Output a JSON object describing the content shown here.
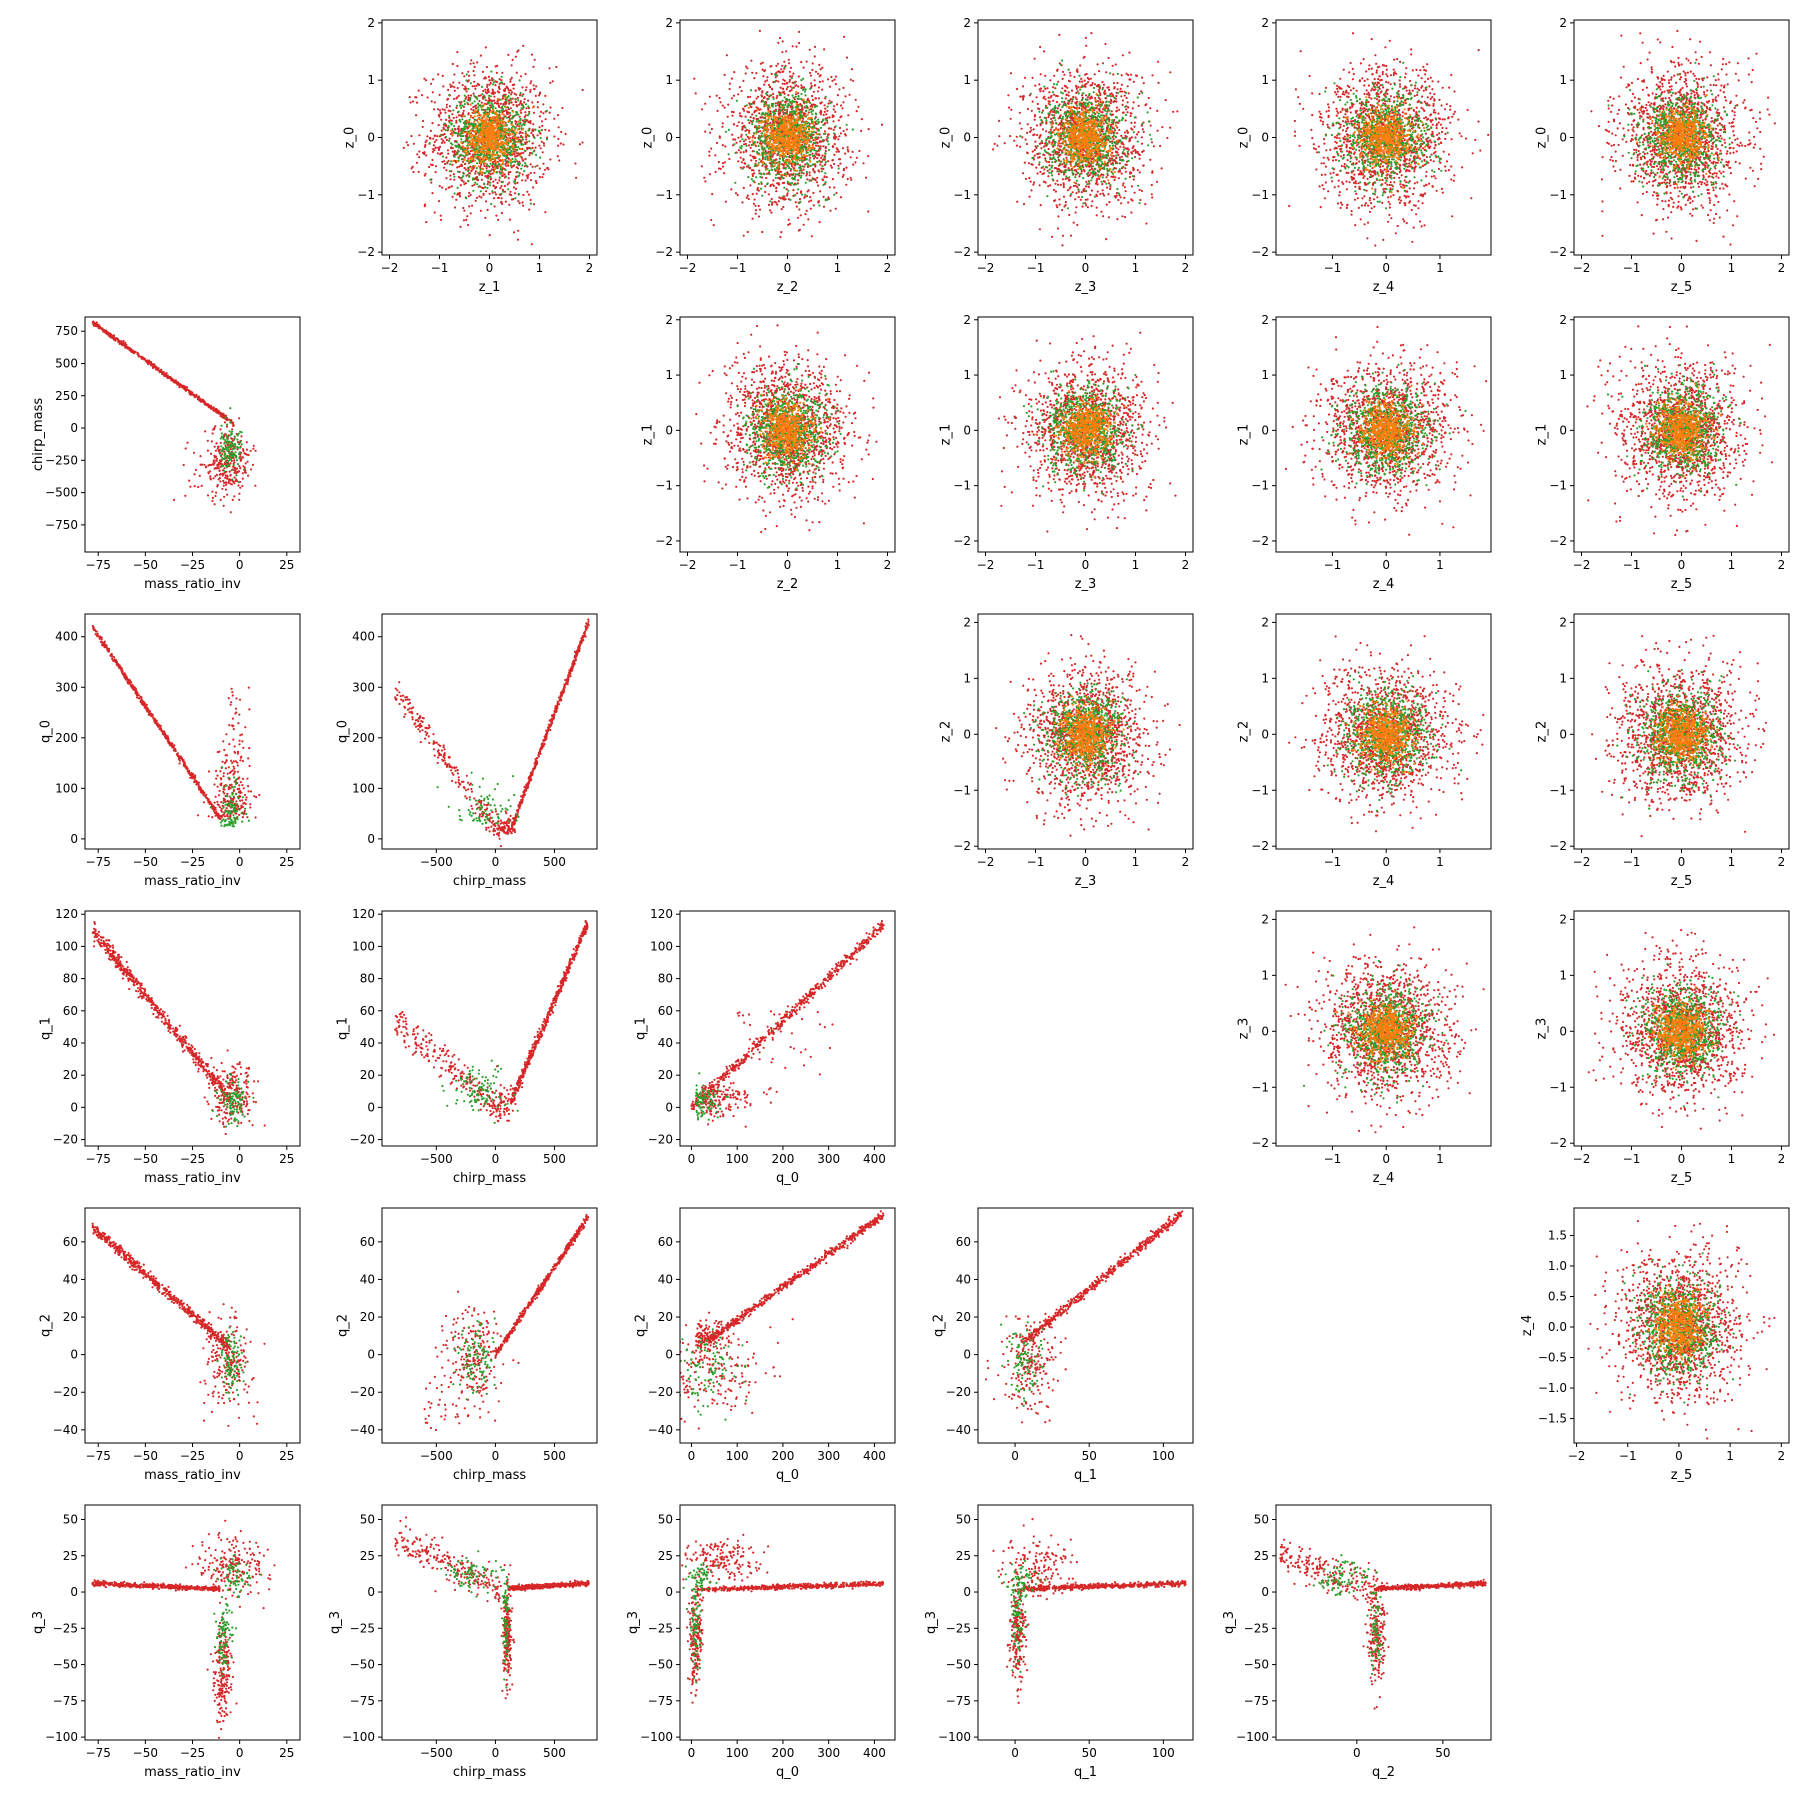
{
  "colors": {
    "outer": "#d62728",
    "middle": "#2ca02c",
    "inner": "#ff7f0e"
  },
  "chart_data": [
    {
      "type": "scatter",
      "pattern": "gauss",
      "xlabel": "z_1",
      "ylabel": "z_0",
      "xlim": [
        -2.15,
        2.15
      ],
      "ylim": [
        -2.05,
        2.05
      ],
      "xticks": [
        -2,
        -1,
        0,
        1,
        2
      ],
      "yticks": [
        -2,
        -1,
        0,
        1,
        2
      ]
    },
    {
      "type": "scatter",
      "pattern": "gauss",
      "xlabel": "z_2",
      "ylabel": "z_0",
      "xlim": [
        -2.15,
        2.15
      ],
      "ylim": [
        -2.05,
        2.05
      ],
      "xticks": [
        -2,
        -1,
        0,
        1,
        2
      ],
      "yticks": [
        -2,
        -1,
        0,
        1,
        2
      ]
    },
    {
      "type": "scatter",
      "pattern": "gauss",
      "xlabel": "z_3",
      "ylabel": "z_0",
      "xlim": [
        -2.15,
        2.15
      ],
      "ylim": [
        -2.05,
        2.05
      ],
      "xticks": [
        -2,
        -1,
        0,
        1,
        2
      ],
      "yticks": [
        -2,
        -1,
        0,
        1,
        2
      ]
    },
    {
      "type": "scatter",
      "pattern": "gauss",
      "xlabel": "z_4",
      "ylabel": "z_0",
      "xlim": [
        -2.05,
        1.95
      ],
      "ylim": [
        -2.05,
        2.05
      ],
      "xticks": [
        -1,
        0,
        1
      ],
      "yticks": [
        -2,
        -1,
        0,
        1,
        2
      ]
    },
    {
      "type": "scatter",
      "pattern": "gauss",
      "xlabel": "z_5",
      "ylabel": "z_0",
      "xlim": [
        -2.15,
        2.15
      ],
      "ylim": [
        -2.05,
        2.05
      ],
      "xticks": [
        -2,
        -1,
        0,
        1,
        2
      ],
      "yticks": [
        -2,
        -1,
        0,
        1,
        2
      ]
    },
    {
      "type": "scatter",
      "pattern": "mri_chirp",
      "xlabel": "mass_ratio_inv",
      "ylabel": "chirp_mass",
      "xlim": [
        -82,
        32
      ],
      "ylim": [
        -960,
        860
      ],
      "xticks": [
        -75,
        -50,
        -25,
        0,
        25
      ],
      "yticks": [
        -750,
        -500,
        -250,
        0,
        250,
        500,
        750
      ]
    },
    {
      "type": "scatter",
      "pattern": "gauss",
      "xlabel": "z_2",
      "ylabel": "z_1",
      "xlim": [
        -2.15,
        2.15
      ],
      "ylim": [
        -2.2,
        2.05
      ],
      "xticks": [
        -2,
        -1,
        0,
        1,
        2
      ],
      "yticks": [
        -2,
        -1,
        0,
        1,
        2
      ]
    },
    {
      "type": "scatter",
      "pattern": "gauss",
      "xlabel": "z_3",
      "ylabel": "z_1",
      "xlim": [
        -2.15,
        2.15
      ],
      "ylim": [
        -2.2,
        2.05
      ],
      "xticks": [
        -2,
        -1,
        0,
        1,
        2
      ],
      "yticks": [
        -2,
        -1,
        0,
        1,
        2
      ]
    },
    {
      "type": "scatter",
      "pattern": "gauss",
      "xlabel": "z_4",
      "ylabel": "z_1",
      "xlim": [
        -2.05,
        1.95
      ],
      "ylim": [
        -2.2,
        2.05
      ],
      "xticks": [
        -1,
        0,
        1
      ],
      "yticks": [
        -2,
        -1,
        0,
        1,
        2
      ]
    },
    {
      "type": "scatter",
      "pattern": "gauss",
      "xlabel": "z_5",
      "ylabel": "z_1",
      "xlim": [
        -2.15,
        2.15
      ],
      "ylim": [
        -2.2,
        2.05
      ],
      "xticks": [
        -2,
        -1,
        0,
        1,
        2
      ],
      "yticks": [
        -2,
        -1,
        0,
        1,
        2
      ]
    },
    {
      "type": "scatter",
      "pattern": "mri_q0",
      "xlabel": "mass_ratio_inv",
      "ylabel": "q_0",
      "xlim": [
        -82,
        32
      ],
      "ylim": [
        -20,
        445
      ],
      "xticks": [
        -75,
        -50,
        -25,
        0,
        25
      ],
      "yticks": [
        0,
        100,
        200,
        300,
        400
      ]
    },
    {
      "type": "scatter",
      "pattern": "chirp_q0",
      "xlabel": "chirp_mass",
      "ylabel": "q_0",
      "xlim": [
        -960,
        860
      ],
      "ylim": [
        -20,
        445
      ],
      "xticks": [
        -500,
        0,
        500
      ],
      "yticks": [
        0,
        100,
        200,
        300,
        400
      ]
    },
    {
      "type": "scatter",
      "pattern": "gauss",
      "xlabel": "z_3",
      "ylabel": "z_2",
      "xlim": [
        -2.15,
        2.15
      ],
      "ylim": [
        -2.05,
        2.15
      ],
      "xticks": [
        -2,
        -1,
        0,
        1,
        2
      ],
      "yticks": [
        -2,
        -1,
        0,
        1,
        2
      ]
    },
    {
      "type": "scatter",
      "pattern": "gauss",
      "xlabel": "z_4",
      "ylabel": "z_2",
      "xlim": [
        -2.05,
        1.95
      ],
      "ylim": [
        -2.05,
        2.15
      ],
      "xticks": [
        -1,
        0,
        1
      ],
      "yticks": [
        -2,
        -1,
        0,
        1,
        2
      ]
    },
    {
      "type": "scatter",
      "pattern": "gauss",
      "xlabel": "z_5",
      "ylabel": "z_2",
      "xlim": [
        -2.15,
        2.15
      ],
      "ylim": [
        -2.05,
        2.15
      ],
      "xticks": [
        -2,
        -1,
        0,
        1,
        2
      ],
      "yticks": [
        -2,
        -1,
        0,
        1,
        2
      ]
    },
    {
      "type": "scatter",
      "pattern": "mri_q1",
      "xlabel": "mass_ratio_inv",
      "ylabel": "q_1",
      "xlim": [
        -82,
        32
      ],
      "ylim": [
        -24,
        122
      ],
      "xticks": [
        -75,
        -50,
        -25,
        0,
        25
      ],
      "yticks": [
        -20,
        0,
        20,
        40,
        60,
        80,
        100,
        120
      ]
    },
    {
      "type": "scatter",
      "pattern": "chirp_q1",
      "xlabel": "chirp_mass",
      "ylabel": "q_1",
      "xlim": [
        -960,
        860
      ],
      "ylim": [
        -24,
        122
      ],
      "xticks": [
        -500,
        0,
        500
      ],
      "yticks": [
        -20,
        0,
        20,
        40,
        60,
        80,
        100,
        120
      ]
    },
    {
      "type": "scatter",
      "pattern": "q0_q1",
      "xlabel": "q_0",
      "ylabel": "q_1",
      "xlim": [
        -25,
        445
      ],
      "ylim": [
        -24,
        122
      ],
      "xticks": [
        0,
        100,
        200,
        300,
        400
      ],
      "yticks": [
        -20,
        0,
        20,
        40,
        60,
        80,
        100,
        120
      ]
    },
    {
      "type": "scatter",
      "pattern": "gauss",
      "xlabel": "z_4",
      "ylabel": "z_3",
      "xlim": [
        -2.05,
        1.95
      ],
      "ylim": [
        -2.05,
        2.15
      ],
      "xticks": [
        -1,
        0,
        1
      ],
      "yticks": [
        -2,
        -1,
        0,
        1,
        2
      ]
    },
    {
      "type": "scatter",
      "pattern": "gauss",
      "xlabel": "z_5",
      "ylabel": "z_3",
      "xlim": [
        -2.15,
        2.15
      ],
      "ylim": [
        -2.05,
        2.15
      ],
      "xticks": [
        -2,
        -1,
        0,
        1,
        2
      ],
      "yticks": [
        -2,
        -1,
        0,
        1,
        2
      ]
    },
    {
      "type": "scatter",
      "pattern": "mri_q2",
      "xlabel": "mass_ratio_inv",
      "ylabel": "q_2",
      "xlim": [
        -82,
        32
      ],
      "ylim": [
        -47,
        78
      ],
      "xticks": [
        -75,
        -50,
        -25,
        0,
        25
      ],
      "yticks": [
        -40,
        -20,
        0,
        20,
        40,
        60
      ]
    },
    {
      "type": "scatter",
      "pattern": "chirp_q2",
      "xlabel": "chirp_mass",
      "ylabel": "q_2",
      "xlim": [
        -960,
        860
      ],
      "ylim": [
        -47,
        78
      ],
      "xticks": [
        -500,
        0,
        500
      ],
      "yticks": [
        -40,
        -20,
        0,
        20,
        40,
        60
      ]
    },
    {
      "type": "scatter",
      "pattern": "q0_q2",
      "xlabel": "q_0",
      "ylabel": "q_2",
      "xlim": [
        -25,
        445
      ],
      "ylim": [
        -47,
        78
      ],
      "xticks": [
        0,
        100,
        200,
        300,
        400
      ],
      "yticks": [
        -40,
        -20,
        0,
        20,
        40,
        60
      ]
    },
    {
      "type": "scatter",
      "pattern": "q1_q2",
      "xlabel": "q_1",
      "ylabel": "q_2",
      "xlim": [
        -25,
        120
      ],
      "ylim": [
        -47,
        78
      ],
      "xticks": [
        0,
        50,
        100
      ],
      "yticks": [
        -40,
        -20,
        0,
        20,
        40,
        60
      ]
    },
    {
      "type": "scatter",
      "pattern": "gauss",
      "xlabel": "z_5",
      "ylabel": "z_4",
      "xlim": [
        -2.05,
        2.15
      ],
      "ylim": [
        -1.9,
        1.95
      ],
      "xticks": [
        -2,
        -1,
        0,
        1,
        2
      ],
      "yticks": [
        -1.5,
        -1.0,
        -0.5,
        0.0,
        0.5,
        1.0,
        1.5
      ],
      "yticklabels": [
        "−1.5",
        "−1.0",
        "−0.5",
        "0.0",
        "0.5",
        "1.0",
        "1.5"
      ]
    },
    {
      "type": "scatter",
      "pattern": "mri_q3",
      "xlabel": "mass_ratio_inv",
      "ylabel": "q_3",
      "xlim": [
        -82,
        32
      ],
      "ylim": [
        -102,
        60
      ],
      "xticks": [
        -75,
        -50,
        -25,
        0,
        25
      ],
      "yticks": [
        -100,
        -75,
        -50,
        -25,
        0,
        25,
        50
      ]
    },
    {
      "type": "scatter",
      "pattern": "chirp_q3",
      "xlabel": "chirp_mass",
      "ylabel": "q_3",
      "xlim": [
        -960,
        860
      ],
      "ylim": [
        -102,
        60
      ],
      "xticks": [
        -500,
        0,
        500
      ],
      "yticks": [
        -100,
        -75,
        -50,
        -25,
        0,
        25,
        50
      ]
    },
    {
      "type": "scatter",
      "pattern": "q0_q3",
      "xlabel": "q_0",
      "ylabel": "q_3",
      "xlim": [
        -25,
        445
      ],
      "ylim": [
        -102,
        60
      ],
      "xticks": [
        0,
        100,
        200,
        300,
        400
      ],
      "yticks": [
        -100,
        -75,
        -50,
        -25,
        0,
        25,
        50
      ]
    },
    {
      "type": "scatter",
      "pattern": "q1_q3",
      "xlabel": "q_1",
      "ylabel": "q_3",
      "xlim": [
        -25,
        120
      ],
      "ylim": [
        -102,
        60
      ],
      "xticks": [
        0,
        50,
        100
      ],
      "yticks": [
        -100,
        -75,
        -50,
        -25,
        0,
        25,
        50
      ]
    },
    {
      "type": "scatter",
      "pattern": "q2_q3",
      "xlabel": "q_2",
      "ylabel": "q_3",
      "xlim": [
        -47,
        78
      ],
      "ylim": [
        -102,
        60
      ],
      "xticks": [
        0,
        50
      ],
      "yticks": [
        -100,
        -75,
        -50,
        -25,
        0,
        25,
        50
      ]
    }
  ]
}
